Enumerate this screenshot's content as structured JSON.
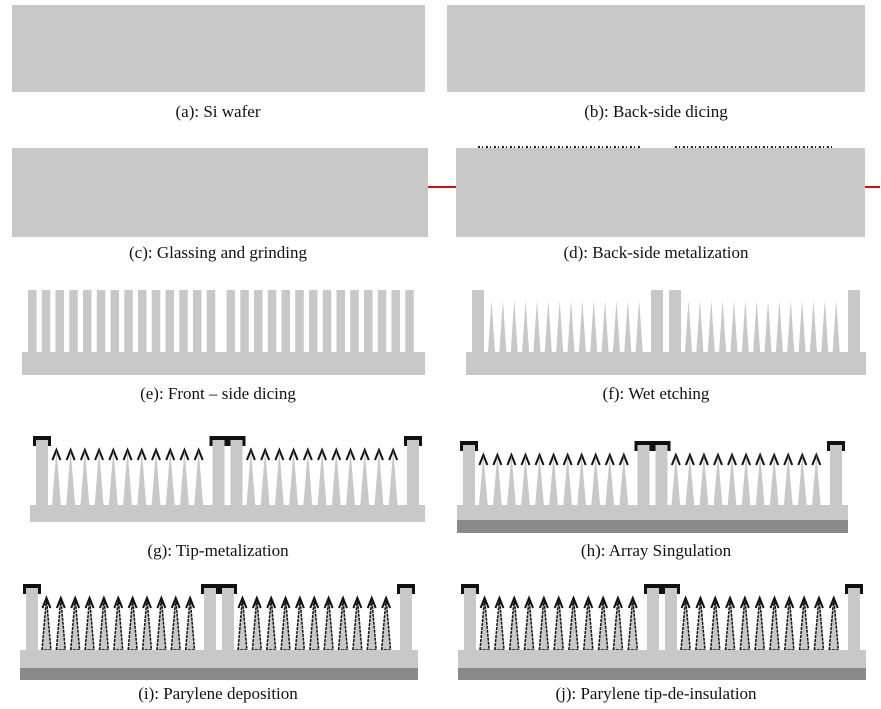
{
  "panels": [
    {
      "caption": "(a): Si wafer"
    },
    {
      "caption": "(b): Back-side dicing"
    },
    {
      "caption": "(c): Glassing and grinding"
    },
    {
      "caption": "(d): Back-side metalization"
    },
    {
      "caption": "(e): Front – side dicing"
    },
    {
      "caption": "(f): Wet etching"
    },
    {
      "caption": "(g): Tip-metalization"
    },
    {
      "caption": "(h): Array Singulation"
    },
    {
      "caption": "(i): Parylene deposition"
    },
    {
      "caption": "(j): Parylene tip-de-insulation"
    }
  ]
}
